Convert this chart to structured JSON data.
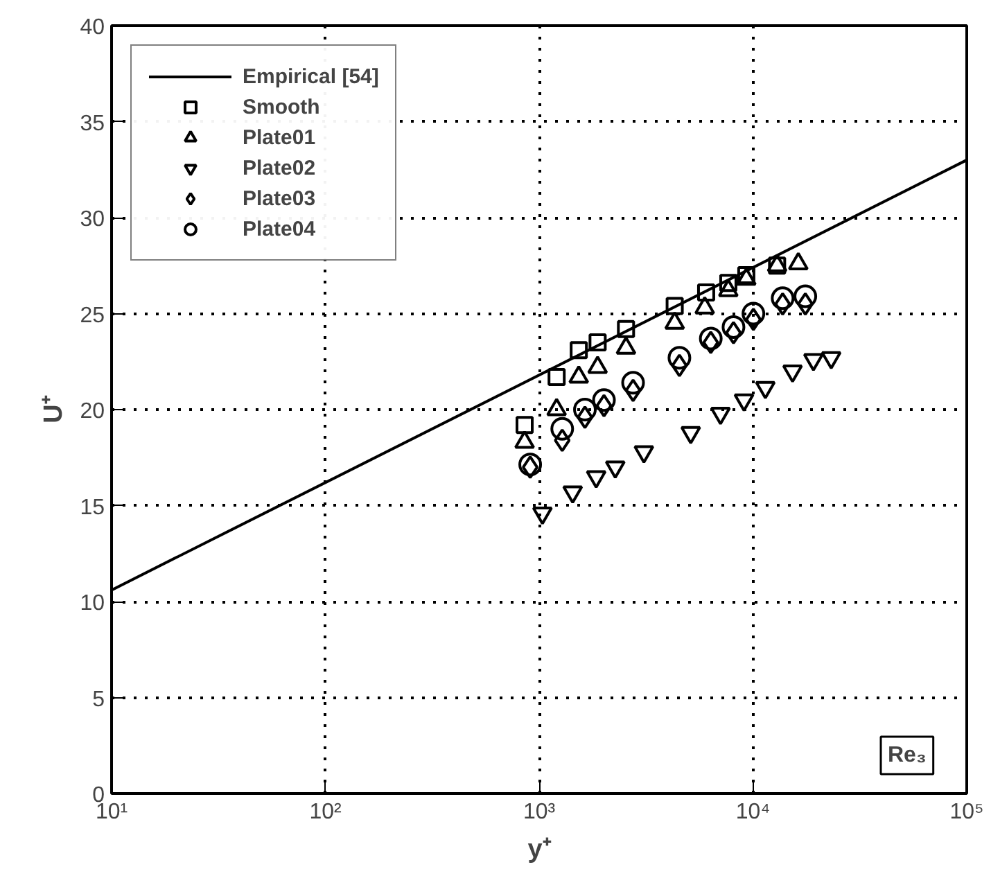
{
  "chart_data": {
    "type": "scatter",
    "xlabel": "y⁺",
    "ylabel": "U⁺",
    "log": "x",
    "xlim": [
      10,
      100000
    ],
    "ylim": [
      0,
      40
    ],
    "xticks": [
      {
        "value": 10,
        "label": "10¹"
      },
      {
        "value": 100,
        "label": "10²"
      },
      {
        "value": 1000,
        "label": "10³"
      },
      {
        "value": 10000,
        "label": "10⁴"
      },
      {
        "value": 100000,
        "label": "10⁵"
      }
    ],
    "yticks": [
      0,
      5,
      10,
      15,
      20,
      25,
      30,
      35,
      40
    ],
    "grid": true,
    "legend": "top left",
    "annotations": [
      "Re₃"
    ],
    "series": [
      {
        "name": "Empirical [54]",
        "type": "line",
        "line_style": "solid",
        "marker": "none",
        "color": "#000000",
        "x": [
          10,
          100000
        ],
        "values": [
          10.6,
          33.0
        ]
      },
      {
        "name": "Smooth",
        "marker": "square",
        "color": "#000000",
        "x": [
          855,
          1207,
          1532,
          1877,
          2548,
          4305,
          6040,
          7670,
          9310,
          12970
        ],
        "values": [
          19.2,
          21.7,
          23.1,
          23.5,
          24.2,
          25.4,
          26.1,
          26.6,
          27.0,
          27.5
        ]
      },
      {
        "name": "Plate01",
        "marker": "triangle",
        "color": "#000000",
        "x": [
          855,
          1207,
          1532,
          1877,
          2548,
          4305,
          5950,
          7670,
          9310,
          12970,
          16300
        ],
        "values": [
          18.3,
          20.0,
          21.7,
          22.2,
          23.2,
          24.5,
          25.3,
          26.2,
          26.8,
          27.5,
          27.6
        ]
      },
      {
        "name": "Plate02",
        "marker": "triangle-down",
        "color": "#000000",
        "x": [
          1036,
          1435,
          1848,
          2270,
          3090,
          5117,
          7050,
          9080,
          11430,
          15320,
          19180,
          23230
        ],
        "values": [
          14.6,
          15.7,
          16.5,
          17.0,
          17.8,
          18.8,
          19.8,
          20.5,
          21.15,
          22.0,
          22.6,
          22.7
        ]
      },
      {
        "name": "Plate03",
        "marker": "diamond",
        "color": "#000000",
        "x": [
          908,
          1282,
          1637,
          2010,
          2750,
          4530,
          6350,
          8110,
          10050,
          13770,
          17580
        ],
        "values": [
          17.0,
          18.4,
          19.6,
          20.2,
          21.0,
          22.3,
          23.5,
          24.0,
          24.7,
          25.5,
          25.5
        ]
      },
      {
        "name": "Plate04",
        "marker": "circle",
        "color": "#000000",
        "x": [
          908,
          1282,
          1637,
          2010,
          2750,
          4530,
          6350,
          8110,
          10050,
          13770,
          17580
        ],
        "values": [
          17.14,
          19.0,
          20.0,
          20.5,
          21.4,
          22.7,
          23.7,
          24.3,
          25.0,
          25.8,
          25.9
        ]
      }
    ]
  }
}
